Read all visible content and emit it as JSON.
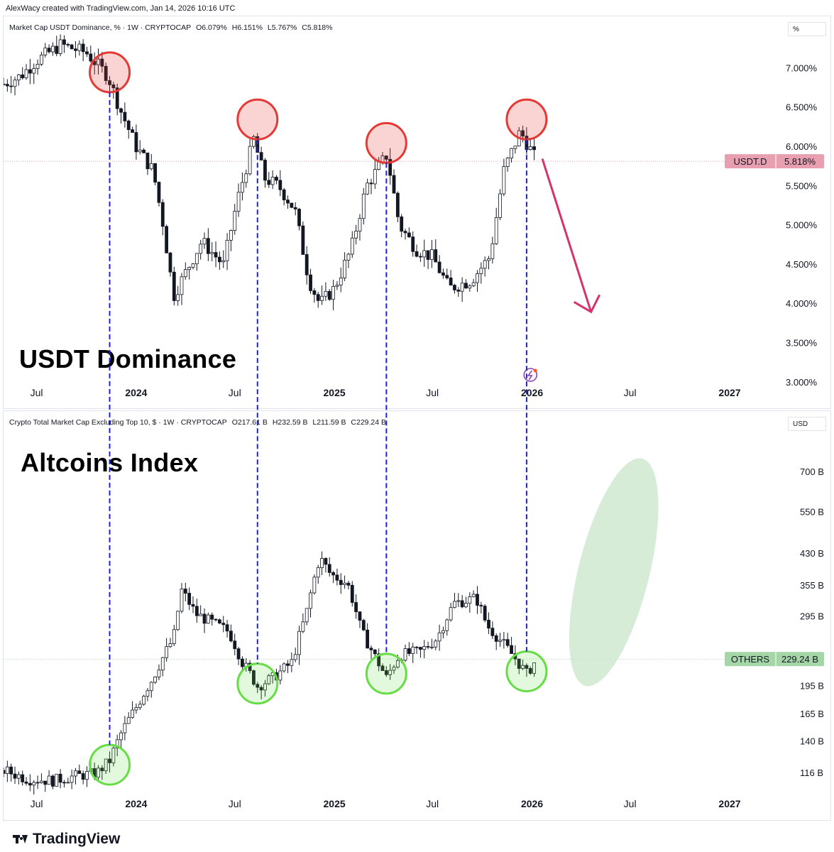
{
  "header": {
    "credit": "AlexWacy created with TradingView.com, Jan 14, 2026 10:16 UTC"
  },
  "footer": {
    "brand": "TradingView",
    "logo_icon": "tradingview-logo-icon"
  },
  "top_pane": {
    "legend": {
      "name": "Market Cap USDT Dominance, % · 1W · CRYPTOCAP",
      "open": "O6.079%",
      "high": "H6.151%",
      "low": "L5.767%",
      "close": "C5.818%"
    },
    "unit": "%",
    "title": "USDT Dominance",
    "symbol_tag": "USDT.D",
    "last_value_label": "5.818%",
    "tag_color": "#e8a0b1",
    "event_icon": "lightning-event-icon"
  },
  "bottom_pane": {
    "legend": {
      "name": "Crypto Total Market Cap Excluding Top 10, $ · 1W · CRYPTOCAP",
      "open": "O217.61 B",
      "high": "H232.59 B",
      "low": "L211.59 B",
      "close": "C229.24 B"
    },
    "unit": "USD",
    "title": "Altcoins Index",
    "symbol_tag": "OTHERS",
    "last_value_label": "229.24 B",
    "tag_color": "#a5d6a7"
  },
  "colors": {
    "up": "#ffffff",
    "down": "#131722",
    "peak_circle": "#e53935",
    "trough_circle": "#66dd44",
    "guide_line": "#2222cc",
    "arrow": "#d6336c",
    "projection": "#c8e6c9"
  },
  "chart_data": [
    {
      "type": "candlestick",
      "title": "USDT Dominance",
      "series_name": "Market Cap USDT Dominance, %",
      "y_unit": "%",
      "ylim": [
        2.8,
        7.5
      ],
      "y_ticks": [
        {
          "label": "7.000%",
          "value": 7.0
        },
        {
          "label": "6.500%",
          "value": 6.5
        },
        {
          "label": "6.000%",
          "value": 6.0
        },
        {
          "label": "5.500%",
          "value": 5.5
        },
        {
          "label": "5.000%",
          "value": 5.0
        },
        {
          "label": "4.500%",
          "value": 4.5
        },
        {
          "label": "4.000%",
          "value": 4.0
        },
        {
          "label": "3.500%",
          "value": 3.5
        },
        {
          "label": "3.000%",
          "value": 3.0
        }
      ],
      "x_range": [
        "2023-05-01",
        "2027-03-01"
      ],
      "x_ticks": [
        {
          "label": "Jul",
          "date": "2023-07-01",
          "bold": false
        },
        {
          "label": "2024",
          "date": "2024-01-01",
          "bold": true
        },
        {
          "label": "Jul",
          "date": "2024-07-01",
          "bold": false
        },
        {
          "label": "2025",
          "date": "2025-01-01",
          "bold": true
        },
        {
          "label": "Jul",
          "date": "2025-07-01",
          "bold": false
        },
        {
          "label": "2026",
          "date": "2026-01-01",
          "bold": true
        },
        {
          "label": "Jul",
          "date": "2026-07-01",
          "bold": false
        },
        {
          "label": "2027",
          "date": "2027-01-01",
          "bold": true
        }
      ],
      "last_value": 5.818,
      "path_points": [
        [
          "2023-05-01",
          6.8
        ],
        [
          "2023-06-01",
          6.9
        ],
        [
          "2023-07-01",
          7.1
        ],
        [
          "2023-08-15",
          7.3
        ],
        [
          "2023-10-01",
          7.2
        ],
        [
          "2023-11-10",
          6.9
        ],
        [
          "2023-12-01",
          6.5
        ],
        [
          "2024-01-01",
          6.0
        ],
        [
          "2024-02-01",
          5.7
        ],
        [
          "2024-02-20",
          5.0
        ],
        [
          "2024-03-10",
          4.1
        ],
        [
          "2024-04-01",
          4.4
        ],
        [
          "2024-05-01",
          4.8
        ],
        [
          "2024-06-10",
          4.5
        ],
        [
          "2024-07-05",
          5.3
        ],
        [
          "2024-08-05",
          6.1
        ],
        [
          "2024-08-25",
          5.6
        ],
        [
          "2024-09-20",
          5.5
        ],
        [
          "2024-10-20",
          5.2
        ],
        [
          "2024-11-15",
          4.3
        ],
        [
          "2024-12-05",
          4.0
        ],
        [
          "2025-01-01",
          4.2
        ],
        [
          "2025-02-01",
          4.7
        ],
        [
          "2025-03-01",
          5.5
        ],
        [
          "2025-04-08",
          5.9
        ],
        [
          "2025-05-01",
          5.0
        ],
        [
          "2025-06-01",
          4.7
        ],
        [
          "2025-07-01",
          4.6
        ],
        [
          "2025-08-01",
          4.2
        ],
        [
          "2025-09-10",
          4.3
        ],
        [
          "2025-10-15",
          4.6
        ],
        [
          "2025-11-10",
          5.7
        ],
        [
          "2025-12-10",
          6.2
        ],
        [
          "2026-01-10",
          5.82
        ]
      ],
      "peaks": [
        {
          "date": "2023-11-13",
          "value": 6.95
        },
        {
          "date": "2024-08-12",
          "value": 6.35
        },
        {
          "date": "2025-04-07",
          "value": 6.05
        },
        {
          "date": "2025-12-22",
          "value": 6.35
        }
      ],
      "projection": {
        "from": [
          "2026-01-20",
          5.85
        ],
        "to": [
          "2026-04-20",
          3.9
        ],
        "direction": "down"
      }
    },
    {
      "type": "candlestick",
      "title": "Altcoins Index",
      "series_name": "Crypto Total Market Cap Excluding Top 10, $",
      "y_unit": "USD",
      "scale": "log",
      "ylim": [
        100,
        850
      ],
      "y_ticks": [
        {
          "label": "700 B",
          "value": 700
        },
        {
          "label": "550 B",
          "value": 550
        },
        {
          "label": "430 B",
          "value": 430
        },
        {
          "label": "355 B",
          "value": 355
        },
        {
          "label": "295 B",
          "value": 295
        },
        {
          "label": "195 B",
          "value": 195
        },
        {
          "label": "165 B",
          "value": 165
        },
        {
          "label": "140 B",
          "value": 140
        },
        {
          "label": "116 B",
          "value": 116
        }
      ],
      "x_range": [
        "2023-05-01",
        "2027-03-01"
      ],
      "x_ticks": [
        {
          "label": "Jul",
          "date": "2023-07-01",
          "bold": false
        },
        {
          "label": "2024",
          "date": "2024-01-01",
          "bold": true
        },
        {
          "label": "Jul",
          "date": "2024-07-01",
          "bold": false
        },
        {
          "label": "2025",
          "date": "2025-01-01",
          "bold": true
        },
        {
          "label": "Jul",
          "date": "2025-07-01",
          "bold": false
        },
        {
          "label": "2026",
          "date": "2026-01-01",
          "bold": true
        },
        {
          "label": "Jul",
          "date": "2026-07-01",
          "bold": false
        },
        {
          "label": "2027",
          "date": "2027-01-01",
          "bold": true
        }
      ],
      "last_value": 229.24,
      "path_points": [
        [
          "2023-05-01",
          118
        ],
        [
          "2023-06-15",
          112
        ],
        [
          "2023-08-01",
          111
        ],
        [
          "2023-09-10",
          114
        ],
        [
          "2023-10-20",
          116
        ],
        [
          "2023-11-13",
          125
        ],
        [
          "2023-12-05",
          148
        ],
        [
          "2024-01-01",
          172
        ],
        [
          "2024-02-01",
          205
        ],
        [
          "2024-03-10",
          260
        ],
        [
          "2024-03-25",
          345
        ],
        [
          "2024-04-20",
          300
        ],
        [
          "2024-05-20",
          285
        ],
        [
          "2024-06-20",
          270
        ],
        [
          "2024-07-15",
          225
        ],
        [
          "2024-08-12",
          195
        ],
        [
          "2024-09-10",
          205
        ],
        [
          "2024-10-15",
          225
        ],
        [
          "2024-11-10",
          300
        ],
        [
          "2024-12-05",
          420
        ],
        [
          "2024-12-25",
          380
        ],
        [
          "2025-01-25",
          360
        ],
        [
          "2025-02-20",
          270
        ],
        [
          "2025-03-15",
          235
        ],
        [
          "2025-04-07",
          205
        ],
        [
          "2025-05-01",
          235
        ],
        [
          "2025-06-10",
          240
        ],
        [
          "2025-07-10",
          260
        ],
        [
          "2025-08-10",
          320
        ],
        [
          "2025-09-20",
          330
        ],
        [
          "2025-10-10",
          280
        ],
        [
          "2025-11-10",
          250
        ],
        [
          "2025-12-22",
          210
        ],
        [
          "2026-01-10",
          229
        ]
      ],
      "troughs": [
        {
          "date": "2023-11-13",
          "value": 122
        },
        {
          "date": "2024-08-12",
          "value": 198
        },
        {
          "date": "2025-04-07",
          "value": 210
        },
        {
          "date": "2025-12-22",
          "value": 213
        }
      ],
      "projection": {
        "center": [
          "2026-06-01",
          385
        ],
        "direction": "up"
      }
    }
  ]
}
